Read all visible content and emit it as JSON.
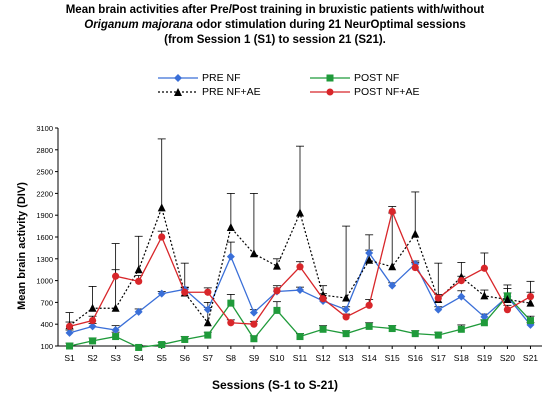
{
  "title": {
    "line1": "Mean brain activities after Pre/Post training in bruxistic patients with/without",
    "line2_italic": "Origanum majorana",
    "line2_rest": " odor stimulation during 21 NeurOptimal sessions",
    "line3": "(from Session 1 (S1) to session 21 (S21)."
  },
  "chart_data": {
    "type": "line",
    "xlabel": "Sessions (S-1 to S-21)",
    "ylabel": "Mean brain activity (DIV)",
    "categories": [
      "S1",
      "S2",
      "S3",
      "S4",
      "S5",
      "S6",
      "S7",
      "S8",
      "S9",
      "S10",
      "S11",
      "S12",
      "S13",
      "S14",
      "S15",
      "S16",
      "S17",
      "S18",
      "S19",
      "S20",
      "S21"
    ],
    "ylim": [
      100,
      3100
    ],
    "yticks": [
      100,
      400,
      700,
      1000,
      1300,
      1600,
      1900,
      2200,
      2500,
      2800,
      3100
    ],
    "legend_position": "top",
    "grid": false,
    "series": [
      {
        "name": "PRE NF",
        "color": "#3a6fd8",
        "marker": "diamond",
        "dash": "solid",
        "values": [
          280,
          370,
          320,
          570,
          820,
          880,
          600,
          1330,
          560,
          850,
          870,
          720,
          600,
          1380,
          930,
          1230,
          600,
          780,
          500,
          780,
          390
        ],
        "errors": [
          40,
          40,
          60,
          40,
          30,
          30,
          30,
          200,
          40,
          50,
          40,
          40,
          40,
          40,
          40,
          40,
          40,
          80,
          40,
          50,
          30
        ]
      },
      {
        "name": "POST NF",
        "color": "#1f9a3a",
        "marker": "square",
        "dash": "solid",
        "values": [
          100,
          170,
          230,
          80,
          120,
          190,
          250,
          690,
          200,
          590,
          230,
          330,
          270,
          370,
          340,
          270,
          250,
          330,
          420,
          790,
          450
        ],
        "errors": [
          40,
          40,
          60,
          30,
          30,
          40,
          40,
          120,
          40,
          120,
          40,
          50,
          40,
          50,
          40,
          40,
          40,
          60,
          40,
          100,
          60
        ]
      },
      {
        "name": "PRE NF+AE",
        "color": "#000000",
        "marker": "triangle",
        "dash": "dotted",
        "values": [
          380,
          620,
          620,
          1150,
          2000,
          830,
          420,
          1730,
          1370,
          1200,
          1930,
          800,
          760,
          1280,
          1190,
          1640,
          740,
          1050,
          790,
          740,
          690
        ],
        "errors": [
          180,
          300,
          890,
          460,
          950,
          410,
          280,
          470,
          830,
          100,
          920,
          130,
          990,
          350,
          740,
          580,
          500,
          200,
          80,
          200,
          300
        ]
      },
      {
        "name": "POST NF+AE",
        "color": "#d8262a",
        "marker": "circle",
        "dash": "solid",
        "values": [
          370,
          450,
          1060,
          990,
          1600,
          840,
          840,
          420,
          400,
          860,
          1190,
          750,
          500,
          660,
          1950,
          1180,
          760,
          1000,
          1170,
          600,
          780
        ],
        "errors": [
          60,
          60,
          90,
          80,
          80,
          60,
          60,
          40,
          40,
          70,
          70,
          70,
          40,
          80,
          70,
          70,
          50,
          60,
          210,
          60,
          60
        ]
      }
    ]
  }
}
